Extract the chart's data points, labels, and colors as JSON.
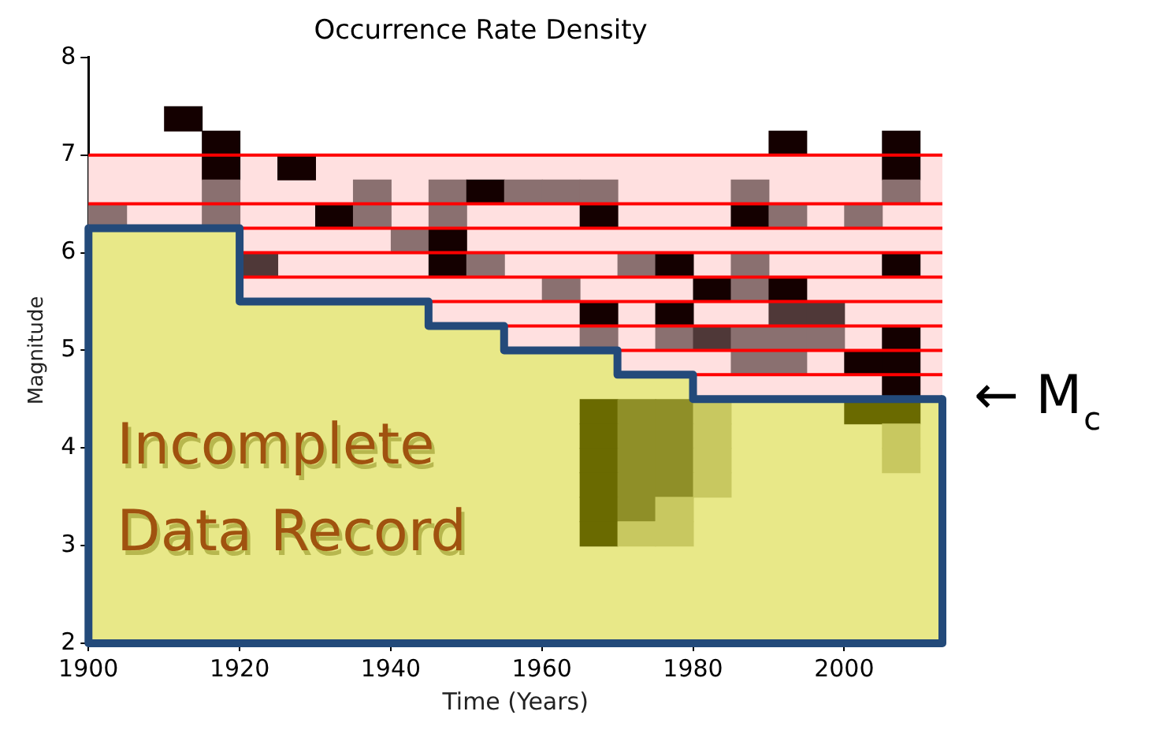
{
  "chart_data": {
    "type": "area",
    "title": "Occurrence Rate Density",
    "xlabel": "Time (Years)",
    "ylabel": "Magnitude",
    "xlim": [
      1900,
      2013
    ],
    "xticks": [
      1900,
      1920,
      1940,
      1960,
      1980,
      2000
    ],
    "ylim": [
      2,
      8
    ],
    "yticks": [
      2,
      3,
      4,
      5,
      6,
      7,
      8
    ],
    "series": [
      {
        "color": "#e8e888",
        "x": [
          1900,
          1920,
          1920,
          1945,
          1945,
          1955,
          1955,
          1970,
          1970,
          1980,
          1980,
          2013
        ],
        "values": [
          6.25,
          6.25,
          5.5,
          5.5,
          5.25,
          5.25,
          5.0,
          5.0,
          4.75,
          4.75,
          4.5,
          4.5
        ]
      },
      {
        "type": "scatter",
        "marker": "square",
        "x": [
          1912.5,
          1917.5,
          1992.5,
          2007.5,
          1917.5,
          1927.5,
          2007.5,
          1917.5,
          1937.5,
          1947.5,
          1952.5,
          1957.5,
          1962.5,
          1967.5,
          1987.5,
          2007.5,
          1902.5,
          1917.5,
          1932.5,
          1937.5,
          1947.5,
          1967.5,
          1987.5,
          1992.5,
          2002.5,
          1942.5,
          1947.5,
          1922.5,
          1947.5,
          1952.5,
          1972.5,
          1977.5,
          1987.5,
          2007.5,
          1962.5,
          1982.5,
          1987.5,
          1992.5,
          1967.5,
          1977.5,
          1992.5,
          1997.5,
          1967.5,
          1977.5,
          1982.5,
          1987.5,
          1992.5,
          1997.5,
          2007.5,
          1987.5,
          1992.5,
          2002.5,
          2007.5,
          2007.5
        ],
        "values": [
          7.375,
          7.125,
          7.125,
          7.125,
          6.875,
          6.875,
          6.875,
          6.625,
          6.625,
          6.625,
          6.625,
          6.625,
          6.625,
          6.625,
          6.625,
          6.625,
          6.375,
          6.375,
          6.375,
          6.375,
          6.375,
          6.375,
          6.375,
          6.375,
          6.375,
          6.125,
          6.125,
          5.875,
          5.875,
          5.875,
          5.875,
          5.875,
          5.875,
          5.875,
          5.625,
          5.625,
          5.625,
          5.625,
          5.375,
          5.375,
          5.375,
          5.375,
          5.125,
          5.125,
          5.125,
          5.125,
          5.125,
          5.125,
          5.125,
          4.875,
          4.875,
          4.875,
          4.875,
          4.625
        ],
        "colors": [
          "#140000",
          "#140000",
          "#140000",
          "#140000",
          "#140000",
          "#140000",
          "#140000",
          "#8a7070",
          "#8a7070",
          "#8a7070",
          "#140000",
          "#8a7070",
          "#8a7070",
          "#8a7070",
          "#8a7070",
          "#8a7070",
          "#8a7070",
          "#8a7070",
          "#140000",
          "#8a7070",
          "#8a7070",
          "#140000",
          "#140000",
          "#8a7070",
          "#8a7070",
          "#8a7070",
          "#140000",
          "#4f3838",
          "#140000",
          "#8a7070",
          "#8a7070",
          "#140000",
          "#8a7070",
          "#140000",
          "#8a7070",
          "#140000",
          "#8a7070",
          "#140000",
          "#140000",
          "#140000",
          "#4f3838",
          "#4f3838",
          "#8a7070",
          "#8a7070",
          "#4f3838",
          "#8a7070",
          "#8a7070",
          "#8a7070",
          "#140000",
          "#8a7070",
          "#8a7070",
          "#140000",
          "#140000",
          "#140000"
        ]
      },
      {
        "type": "scatter",
        "marker": "square",
        "x": [
          1967.5,
          1972.5,
          1977.5,
          1982.5,
          2002.5,
          2007.5,
          1967.5,
          1972.5,
          1977.5,
          1982.5,
          2007.5,
          1967.5,
          1972.5,
          1977.5,
          1982.5,
          2007.5,
          1967.5,
          1972.5,
          1977.5,
          1982.5,
          1967.5,
          1972.5,
          1977.5,
          1967.5,
          1972.5,
          1977.5
        ],
        "values": [
          4.375,
          4.375,
          4.375,
          4.375,
          4.375,
          4.375,
          4.125,
          4.125,
          4.125,
          4.125,
          4.125,
          3.875,
          3.875,
          3.875,
          3.875,
          3.875,
          3.625,
          3.625,
          3.625,
          3.625,
          3.375,
          3.375,
          3.375,
          3.125,
          3.125,
          3.125
        ],
        "colors": [
          "#6a6a00",
          "#8f8f28",
          "#8f8f28",
          "#c8c860",
          "#6a6a00",
          "#6a6a00",
          "#6a6a00",
          "#8f8f28",
          "#8f8f28",
          "#c8c860",
          "#c8c860",
          "#6a6a00",
          "#8f8f28",
          "#8f8f28",
          "#c8c860",
          "#c8c860",
          "#6a6a00",
          "#8f8f28",
          "#8f8f28",
          "#c8c860",
          "#6a6a00",
          "#8f8f28",
          "#c8c860",
          "#6a6a00",
          "#c8c860",
          "#c8c860"
        ]
      },
      {
        "type": "line",
        "color": "#234a7a",
        "x": [
          1900,
          1920,
          1920,
          1945,
          1945,
          1955,
          1955,
          1970,
          1970,
          1980,
          1980,
          2013
        ],
        "values": [
          6.25,
          6.25,
          5.5,
          5.5,
          5.25,
          5.25,
          5.0,
          5.0,
          4.75,
          4.75,
          4.5,
          4.5
        ]
      }
    ],
    "ref_lines": [
      {
        "axis": "y",
        "value": 7.0,
        "color": "#ff0000"
      },
      {
        "axis": "y",
        "value": 6.5,
        "color": "#ff0000"
      },
      {
        "axis": "y",
        "value": 6.25,
        "color": "#ff0000"
      },
      {
        "axis": "y",
        "value": 6.0,
        "color": "#ff0000"
      },
      {
        "axis": "y",
        "value": 5.75,
        "color": "#ff0000"
      },
      {
        "axis": "y",
        "value": 5.5,
        "color": "#ff0000"
      },
      {
        "axis": "y",
        "value": 5.25,
        "color": "#ff0000"
      },
      {
        "axis": "y",
        "value": 5.0,
        "color": "#ff0000"
      },
      {
        "axis": "y",
        "value": 4.75,
        "color": "#ff0000"
      }
    ],
    "bands": [
      {
        "axis": "y",
        "from": 4.5,
        "to": 7.0,
        "color": "#ffe0e0"
      }
    ],
    "annotations": [
      "Incomplete Data Record",
      "← M$_{c}$"
    ],
    "grid": false,
    "legend": false
  }
}
